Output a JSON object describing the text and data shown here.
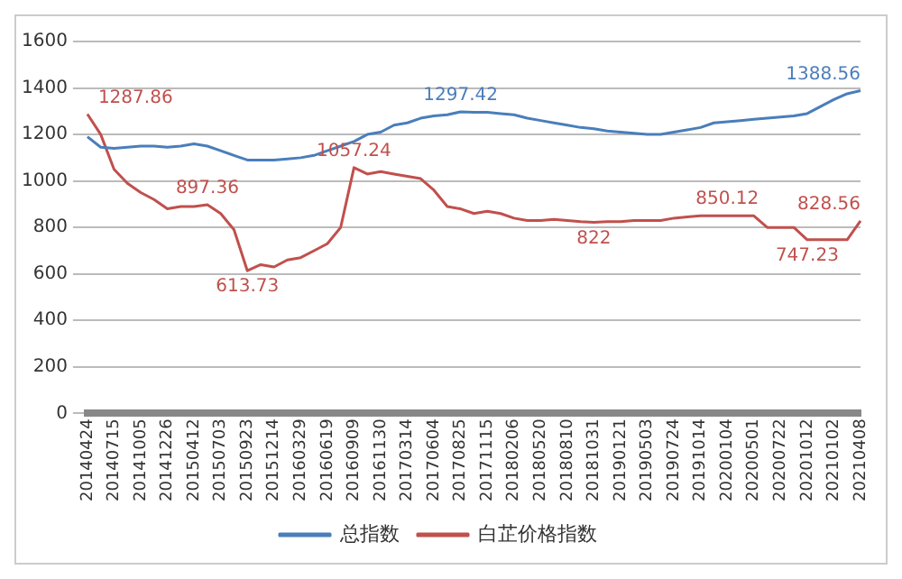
{
  "chart_data": {
    "type": "line",
    "categories": [
      "20140424",
      null,
      "20140715",
      null,
      "20141005",
      null,
      "20141226",
      null,
      "20150412",
      null,
      "20150703",
      null,
      "20150923",
      null,
      "20151214",
      null,
      "20160329",
      null,
      "20160619",
      null,
      "20160909",
      null,
      "20161130",
      null,
      "20170314",
      null,
      "20170604",
      null,
      "20170825",
      null,
      "20171115",
      null,
      "20180206",
      null,
      "20180520",
      null,
      "20180810",
      null,
      "20181031",
      null,
      "20190121",
      null,
      "20190503",
      null,
      "20190724",
      null,
      "20191014",
      null,
      "20200104",
      null,
      "20200501",
      null,
      "20200722",
      null,
      "20201012",
      null,
      "20210102",
      null,
      "20210408"
    ],
    "series": [
      {
        "name": "总指数",
        "color": "#4a7ebb",
        "values": [
          1190,
          1145,
          1140,
          1145,
          1150,
          1150,
          1145,
          1150,
          1160,
          1150,
          1130,
          1110,
          1090,
          1090,
          1090,
          1095,
          1100,
          1110,
          1130,
          1150,
          1170,
          1200,
          1210,
          1240,
          1250,
          1270,
          1280,
          1285,
          1297.42,
          1295,
          1295,
          1290,
          1285,
          1270,
          1260,
          1250,
          1240,
          1230,
          1225,
          1215,
          1210,
          1205,
          1200,
          1200,
          1210,
          1220,
          1230,
          1250,
          1255,
          1260,
          1265,
          1270,
          1275,
          1280,
          1290,
          1320,
          1350,
          1375,
          1388.56
        ],
        "value_labels": [
          null,
          null,
          null,
          null,
          null,
          null,
          null,
          null,
          null,
          null,
          null,
          null,
          null,
          null,
          null,
          null,
          null,
          null,
          null,
          null,
          null,
          null,
          null,
          null,
          null,
          null,
          null,
          null,
          "1297.42",
          null,
          null,
          null,
          null,
          null,
          null,
          null,
          null,
          null,
          null,
          null,
          null,
          null,
          null,
          null,
          null,
          null,
          null,
          null,
          null,
          null,
          null,
          null,
          null,
          null,
          null,
          null,
          null,
          null,
          "1388.56"
        ]
      },
      {
        "name": "白芷价格指数",
        "color": "#c0504d",
        "values": [
          1287.86,
          1200,
          1050,
          990,
          950,
          920,
          880,
          890,
          890,
          897.36,
          860,
          790,
          613.73,
          640,
          630,
          660,
          670,
          700,
          730,
          800,
          1057.24,
          1030,
          1040,
          1030,
          1020,
          1010,
          960,
          890,
          880,
          860,
          870,
          860,
          840,
          830,
          830,
          835,
          830,
          825,
          822,
          825,
          825,
          830,
          830,
          830,
          840,
          845,
          850,
          850,
          850.12,
          850,
          850,
          800,
          800,
          800,
          747.23,
          747,
          747,
          747,
          828.56
        ],
        "value_labels": [
          "1287.86",
          null,
          null,
          null,
          null,
          null,
          null,
          null,
          null,
          "897.36",
          null,
          null,
          "613.73",
          null,
          null,
          null,
          null,
          null,
          null,
          null,
          "1057.24",
          null,
          null,
          null,
          null,
          null,
          null,
          null,
          null,
          null,
          null,
          null,
          null,
          null,
          null,
          null,
          null,
          null,
          "822",
          null,
          null,
          null,
          null,
          null,
          null,
          null,
          null,
          null,
          "850.12",
          null,
          null,
          null,
          null,
          null,
          "747.23",
          null,
          null,
          null,
          "828.56"
        ]
      }
    ],
    "ylim": [
      0,
      1600
    ],
    "yticks": [
      0,
      200,
      400,
      600,
      800,
      1000,
      1200,
      1400,
      1600
    ],
    "grid": "y",
    "legend": "bottom",
    "marker": "none",
    "line_style": "solid"
  }
}
